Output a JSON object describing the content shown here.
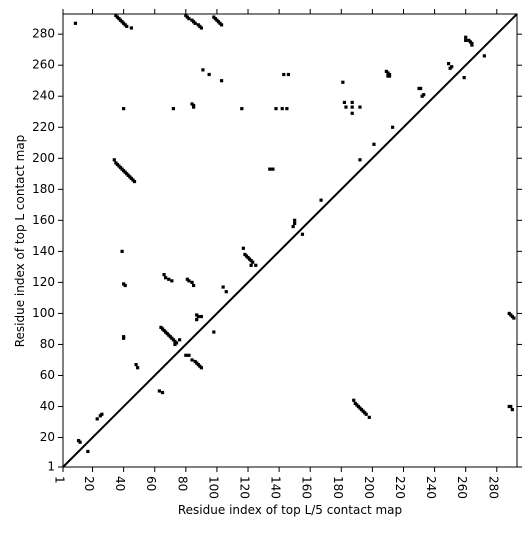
{
  "chart_data": {
    "type": "scatter",
    "x_label": "Residue index of top L/5 contact map",
    "y_label": "Residue index of top L contact map",
    "xlim": [
      1,
      293
    ],
    "ylim": [
      1,
      293
    ],
    "xticks": [
      1,
      20,
      40,
      60,
      80,
      100,
      120,
      140,
      160,
      180,
      200,
      220,
      240,
      260,
      280
    ],
    "yticks": [
      1,
      20,
      40,
      60,
      80,
      100,
      120,
      140,
      160,
      180,
      200,
      220,
      240,
      260,
      280
    ],
    "diagonal": true,
    "series": [
      {
        "color": "#000000",
        "x": [
          9,
          35,
          36,
          37,
          38,
          39,
          40,
          41,
          42,
          45,
          80,
          81,
          82,
          84,
          85,
          86,
          88,
          89,
          90,
          98,
          99,
          100,
          101,
          102,
          103,
          91,
          95,
          103,
          84,
          85,
          85,
          40,
          72,
          116,
          138,
          142,
          145,
          143,
          146,
          181,
          182,
          183,
          187,
          187,
          187,
          192,
          209,
          210,
          211,
          210,
          211,
          230,
          231,
          232,
          233,
          249,
          250,
          251,
          260,
          260,
          262,
          263,
          264,
          264,
          272,
          259,
          213,
          201,
          192,
          134,
          136,
          167,
          150,
          150,
          149,
          155,
          117,
          118,
          119,
          120,
          121,
          122,
          123,
          122,
          125,
          104,
          106,
          34,
          35,
          36,
          37,
          38,
          39,
          40,
          41,
          42,
          43,
          44,
          45,
          46,
          47,
          39,
          40,
          41,
          40,
          40,
          66,
          67,
          69,
          71,
          81,
          82,
          84,
          85,
          87,
          88,
          90,
          87,
          98,
          64,
          65,
          66,
          67,
          68,
          69,
          70,
          71,
          72,
          73,
          74,
          76,
          73,
          80,
          82,
          84,
          86,
          87,
          88,
          89,
          90,
          48,
          49,
          63,
          65,
          11,
          12,
          25,
          26,
          23,
          17,
          188,
          189,
          190,
          191,
          192,
          193,
          194,
          195,
          196,
          198,
          288,
          289,
          290,
          288,
          289,
          290,
          291
        ],
        "values": [
          287,
          292,
          291,
          290,
          289,
          288,
          287,
          286,
          285,
          284,
          292,
          291,
          290,
          289,
          288,
          287,
          286,
          285,
          284,
          291,
          290,
          289,
          288,
          287,
          286,
          257,
          254,
          250,
          235,
          234,
          233,
          232,
          232,
          232,
          232,
          232,
          232,
          254,
          254,
          249,
          236,
          233,
          236,
          229,
          233,
          233,
          256,
          255,
          254,
          253,
          253,
          245,
          245,
          240,
          241,
          261,
          258,
          259,
          278,
          276,
          276,
          275,
          274,
          273,
          266,
          252,
          220,
          209,
          199,
          193,
          193,
          173,
          160,
          158,
          156,
          151,
          142,
          138,
          137,
          136,
          135,
          134,
          133,
          131,
          131,
          117,
          114,
          199,
          197,
          196,
          195,
          194,
          193,
          192,
          191,
          190,
          189,
          188,
          187,
          186,
          185,
          140,
          119,
          118,
          85,
          84,
          125,
          123,
          122,
          121,
          122,
          121,
          120,
          118,
          99,
          98,
          98,
          96,
          88,
          91,
          90,
          89,
          88,
          87,
          86,
          85,
          84,
          83,
          82,
          81,
          83,
          80,
          73,
          73,
          70,
          69,
          68,
          67,
          66,
          65,
          67,
          65,
          50,
          49,
          18,
          17,
          34,
          35,
          32,
          11,
          44,
          42,
          41,
          40,
          39,
          38,
          37,
          36,
          35,
          33,
          40,
          40,
          38,
          100,
          99,
          98,
          97
        ]
      }
    ]
  }
}
